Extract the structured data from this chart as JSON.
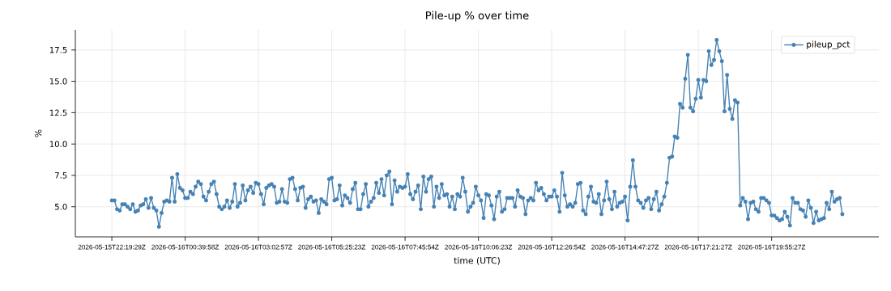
{
  "chart_data": {
    "type": "line",
    "title": "Pile-up % over time",
    "xlabel": "time (UTC)",
    "ylabel": "%",
    "categories": [
      "2026-05-15T22:19:29Z",
      null,
      null,
      null,
      null,
      null,
      null,
      null,
      null,
      null,
      null,
      null,
      null,
      null,
      null,
      null,
      null,
      null,
      null,
      null,
      null,
      null,
      null,
      null,
      null,
      null,
      null,
      null,
      "2026-05-16T00:39:58Z",
      null,
      null,
      null,
      null,
      null,
      null,
      null,
      null,
      null,
      null,
      null,
      null,
      null,
      null,
      null,
      null,
      null,
      null,
      null,
      null,
      null,
      null,
      null,
      null,
      null,
      null,
      null,
      "2026-05-16T03:02:57Z",
      null,
      null,
      null,
      null,
      null,
      null,
      null,
      null,
      null,
      null,
      null,
      null,
      null,
      null,
      null,
      null,
      null,
      null,
      null,
      null,
      null,
      null,
      null,
      null,
      null,
      null,
      null,
      "2026-05-16T05:25:23Z",
      null,
      null,
      null,
      null,
      null,
      null,
      null,
      null,
      null,
      null,
      null,
      null,
      null,
      null,
      null,
      null,
      null,
      null,
      null,
      null,
      null,
      null,
      null,
      null,
      null,
      null,
      null,
      "2026-05-16T07:45:54Z",
      null,
      null,
      null,
      null,
      null,
      null,
      null,
      null,
      null,
      null,
      null,
      null,
      null,
      null,
      null,
      null,
      null,
      null,
      null,
      null,
      null,
      null,
      null,
      null,
      null,
      null,
      null,
      "2026-05-16T10:06:23Z",
      null,
      null,
      null,
      null,
      null,
      null,
      null,
      null,
      null,
      null,
      null,
      null,
      null,
      null,
      null,
      null,
      null,
      null,
      null,
      null,
      null,
      null,
      null,
      null,
      null,
      null,
      null,
      "2026-05-16T12:26:54Z",
      null,
      null,
      null,
      null,
      null,
      null,
      null,
      null,
      null,
      null,
      null,
      null,
      null,
      null,
      null,
      null,
      null,
      null,
      null,
      null,
      null,
      null,
      null,
      null,
      null,
      null,
      null,
      "2026-05-16T14:47:27Z",
      null,
      null,
      null,
      null,
      null,
      null,
      null,
      null,
      null,
      null,
      null,
      null,
      null,
      null,
      null,
      null,
      null,
      null,
      null,
      null,
      null,
      null,
      null,
      null,
      null,
      null,
      null,
      "2026-05-16T17:21:27Z",
      null,
      null,
      null,
      null,
      null,
      null,
      null,
      null,
      null,
      null,
      null,
      null,
      null,
      null,
      null,
      null,
      null,
      null,
      null,
      null,
      null,
      null,
      null,
      null,
      null,
      null,
      null,
      "2026-05-16T19:55:27Z",
      null,
      null,
      null,
      null,
      null,
      null,
      null,
      null,
      null,
      null,
      null,
      null,
      null,
      null,
      null,
      null,
      null,
      null,
      null,
      null,
      null,
      null,
      null,
      null,
      null,
      null,
      null
    ],
    "series": [
      {
        "name": "pileup_pct",
        "color": "#4682b4",
        "values": [
          5.5,
          5.5,
          4.8,
          4.7,
          5.2,
          5.2,
          5.0,
          4.8,
          5.2,
          4.6,
          4.7,
          5.1,
          5.2,
          5.6,
          4.9,
          5.7,
          4.9,
          4.7,
          3.4,
          4.5,
          5.4,
          5.5,
          5.4,
          7.3,
          5.4,
          7.6,
          6.5,
          6.3,
          5.7,
          5.7,
          6.2,
          6.0,
          6.6,
          7.0,
          6.8,
          5.8,
          5.5,
          6.2,
          6.8,
          7.0,
          6.0,
          5.0,
          4.8,
          5.0,
          5.5,
          4.9,
          5.4,
          6.8,
          5.0,
          5.3,
          6.7,
          5.5,
          6.3,
          6.6,
          6.1,
          6.9,
          6.8,
          6.0,
          5.2,
          6.5,
          6.7,
          6.8,
          6.6,
          5.3,
          5.4,
          6.4,
          5.4,
          5.3,
          7.2,
          7.3,
          6.4,
          5.5,
          6.5,
          6.6,
          4.9,
          5.6,
          5.8,
          5.4,
          5.5,
          4.5,
          5.6,
          5.4,
          5.2,
          7.2,
          7.3,
          5.5,
          5.6,
          6.7,
          5.1,
          5.9,
          5.7,
          5.3,
          6.4,
          6.9,
          4.8,
          4.8,
          6.0,
          6.8,
          5.0,
          5.4,
          5.7,
          6.9,
          6.1,
          7.2,
          5.9,
          7.5,
          7.8,
          5.2,
          7.1,
          6.2,
          6.6,
          6.5,
          6.6,
          7.6,
          6.0,
          5.6,
          6.2,
          6.7,
          4.8,
          7.4,
          6.2,
          7.2,
          7.4,
          5.0,
          6.6,
          5.7,
          6.8,
          5.9,
          6.0,
          5.0,
          5.8,
          4.8,
          6.0,
          5.8,
          7.3,
          6.2,
          4.6,
          5.0,
          5.3,
          6.6,
          5.9,
          5.5,
          4.1,
          6.0,
          5.9,
          5.1,
          4.0,
          5.8,
          6.2,
          4.6,
          4.8,
          5.7,
          5.7,
          5.7,
          5.0,
          6.3,
          5.8,
          5.7,
          4.4,
          5.5,
          5.7,
          5.5,
          6.9,
          6.3,
          6.5,
          6.0,
          5.5,
          5.8,
          5.8,
          6.3,
          5.8,
          4.6,
          7.7,
          5.9,
          5.0,
          5.2,
          5.0,
          5.3,
          6.8,
          6.9,
          4.7,
          4.4,
          5.8,
          6.6,
          5.4,
          5.3,
          6.0,
          4.4,
          5.5,
          7.0,
          5.6,
          4.8,
          6.2,
          5.0,
          5.3,
          5.4,
          5.8,
          3.9,
          6.6,
          8.7,
          6.6,
          5.5,
          5.3,
          4.9,
          5.5,
          5.7,
          4.8,
          5.6,
          6.2,
          4.7,
          5.2,
          5.8,
          6.9,
          8.9,
          9.0,
          10.6,
          10.5,
          13.2,
          12.9,
          15.2,
          17.1,
          12.9,
          12.6,
          13.6,
          15.1,
          13.7,
          15.1,
          15.0,
          17.4,
          16.3,
          16.7,
          18.3,
          17.4,
          16.6,
          12.6,
          15.5,
          12.8,
          12.0,
          13.5,
          13.3,
          5.1,
          5.7,
          5.4,
          4.0,
          5.3,
          5.4,
          4.8,
          4.6,
          5.7,
          5.7,
          5.5,
          5.3,
          4.3,
          4.3,
          4.1,
          3.9,
          4.0,
          4.6,
          4.2,
          3.5,
          5.7,
          5.3,
          5.3,
          4.8,
          4.7,
          4.2,
          5.5,
          4.9,
          3.7,
          4.6,
          3.9,
          4.0,
          4.1,
          5.3,
          4.8,
          6.2,
          5.4,
          5.6,
          5.7,
          4.4
        ]
      }
    ],
    "ylim": [
      2.6,
      19.1
    ],
    "yticks": [
      {
        "value": 5,
        "label": "5.0"
      },
      {
        "value": 7.5,
        "label": "7.5"
      },
      {
        "value": 10,
        "label": "10.0"
      },
      {
        "value": 12.5,
        "label": "12.5"
      },
      {
        "value": 15,
        "label": "15.0"
      },
      {
        "value": 17.5,
        "label": "17.5"
      }
    ],
    "grid": true,
    "legend": "top right",
    "marker": "circle",
    "line_style": "solid"
  }
}
